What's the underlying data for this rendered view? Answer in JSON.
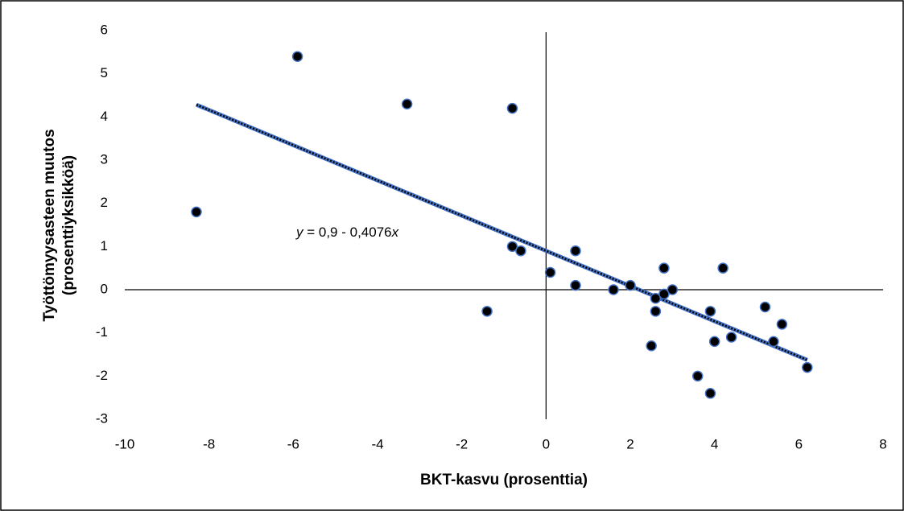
{
  "chart_data": {
    "type": "scatter",
    "x_label": "BKT-kasvu (prosenttia)",
    "y_label": [
      "Työttömyysasteen muutos",
      "(prosenttiyksikköä)"
    ],
    "x": [
      -8.3,
      -5.9,
      -3.3,
      -0.8,
      -1.4,
      -0.8,
      -0.6,
      0.1,
      0.7,
      0.7,
      1.6,
      2.0,
      2.6,
      2.6,
      2.5,
      2.8,
      2.8,
      3.0,
      3.6,
      3.9,
      3.9,
      4.0,
      4.2,
      4.4,
      5.2,
      5.4,
      5.6,
      6.2
    ],
    "values": [
      1.8,
      5.4,
      4.3,
      4.2,
      -0.5,
      1.0,
      0.9,
      0.4,
      0.9,
      0.1,
      0,
      0.1,
      -0.2,
      -0.5,
      -1.3,
      -0.1,
      0.5,
      0,
      -2.0,
      -0.5,
      -2.4,
      -1.2,
      0.5,
      -1.1,
      -0.4,
      -1.2,
      -0.8,
      -1.8
    ],
    "color": "#000000",
    "edge_color": "#4472c4",
    "trendline": {
      "intercept": 0.9,
      "slope": -0.4076,
      "color": "#4472c4",
      "label": [
        "y",
        " = 0,9 - 0,4076",
        "x"
      ]
    },
    "xlim": [
      -10,
      8
    ],
    "xticks": [
      -10,
      -8,
      -6,
      -4,
      -2,
      0,
      2,
      4,
      6,
      8
    ],
    "ylim": [
      -3,
      6
    ],
    "yticks": [
      -3,
      -2,
      -1,
      0,
      1,
      2,
      3,
      4,
      5,
      6
    ],
    "grid": false
  }
}
